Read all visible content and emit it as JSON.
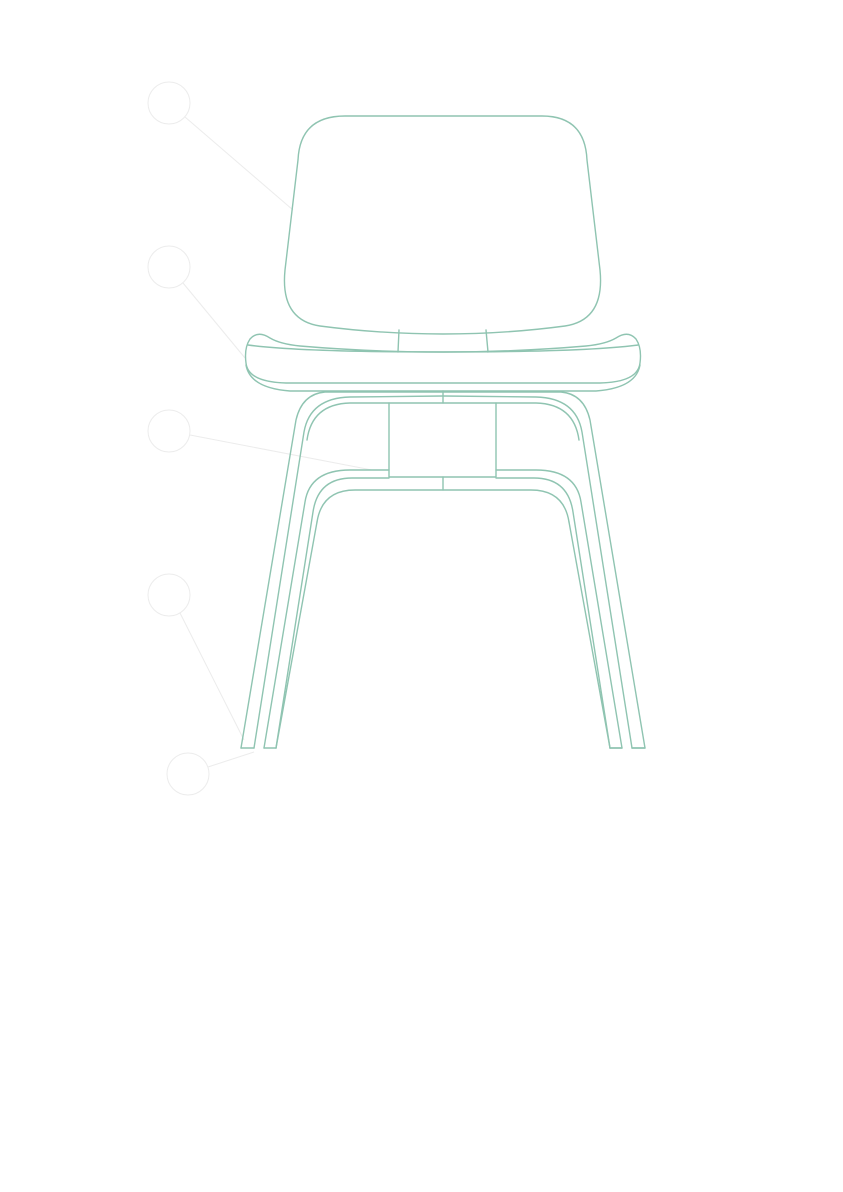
{
  "colors": {
    "line": "#8fc4b1",
    "callout": "#ececec",
    "background": "#ffffff"
  },
  "callouts": [
    {
      "id": "callout-1",
      "label": ""
    },
    {
      "id": "callout-2",
      "label": ""
    },
    {
      "id": "callout-3",
      "label": ""
    },
    {
      "id": "callout-4",
      "label": ""
    },
    {
      "id": "callout-5",
      "label": ""
    }
  ]
}
